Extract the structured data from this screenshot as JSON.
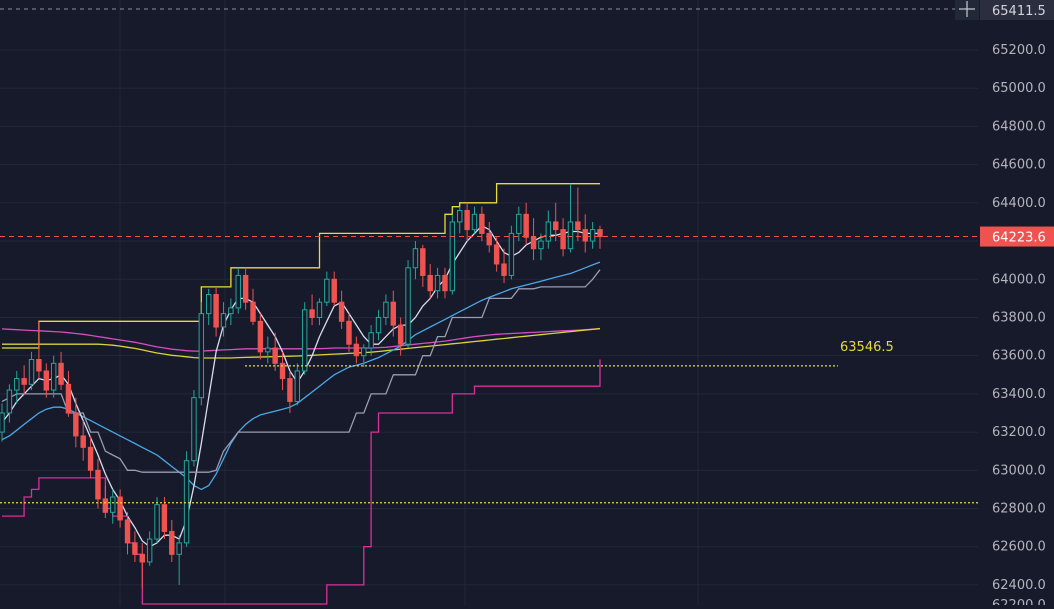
{
  "chart_data": {
    "type": "candlestick",
    "ylim": [
      62300,
      65420
    ],
    "y_ticks": [
      62400,
      62600,
      62800,
      63000,
      63200,
      63400,
      63600,
      63800,
      64000,
      64200,
      64400,
      64600,
      64800,
      65000,
      65200
    ],
    "y_tick_labels": [
      "62400.0",
      "62600.0",
      "62800.0",
      "63000.0",
      "63200.0",
      "63400.0",
      "63600.0",
      "63800.0",
      "64000.0",
      "64200.0",
      "64400.0",
      "64600.0",
      "64800.0",
      "65000.0",
      "65200.0"
    ],
    "bottom_partial_label": "62200.0",
    "price_labels": {
      "top": {
        "value": 65411.5,
        "text": "65411.5"
      },
      "last": {
        "value": 64223.6,
        "text": "64223.6"
      },
      "level": {
        "value": 63546.5,
        "text": "63546.5"
      }
    },
    "level_lines": {
      "upper": 63546.5,
      "lower": 62830
    },
    "candle_count": 82,
    "candles": [
      [
        63200,
        63350,
        63150,
        63300
      ],
      [
        63300,
        63450,
        63250,
        63420
      ],
      [
        63420,
        63520,
        63350,
        63480
      ],
      [
        63480,
        63550,
        63400,
        63450
      ],
      [
        63450,
        63620,
        63420,
        63580
      ],
      [
        63580,
        63780,
        63480,
        63520
      ],
      [
        63520,
        63560,
        63380,
        63420
      ],
      [
        63420,
        63600,
        63380,
        63560
      ],
      [
        63560,
        63620,
        63420,
        63450
      ],
      [
        63450,
        63520,
        63280,
        63300
      ],
      [
        63300,
        63380,
        63120,
        63180
      ],
      [
        63180,
        63260,
        63050,
        63120
      ],
      [
        63120,
        63180,
        62960,
        63000
      ],
      [
        63000,
        63060,
        62800,
        62850
      ],
      [
        62850,
        62920,
        62750,
        62780
      ],
      [
        62780,
        62900,
        62720,
        62860
      ],
      [
        62860,
        62900,
        62700,
        62740
      ],
      [
        62740,
        62780,
        62560,
        62620
      ],
      [
        62620,
        62680,
        62520,
        62560
      ],
      [
        62560,
        62620,
        62380,
        62520
      ],
      [
        62520,
        62680,
        62500,
        62640
      ],
      [
        62640,
        62860,
        62620,
        62820
      ],
      [
        62820,
        62860,
        62640,
        62680
      ],
      [
        62680,
        62740,
        62520,
        62560
      ],
      [
        62560,
        62660,
        62400,
        62620
      ],
      [
        62620,
        63100,
        62600,
        63050
      ],
      [
        63050,
        63420,
        63020,
        63380
      ],
      [
        63380,
        63880,
        63340,
        63820
      ],
      [
        63820,
        63950,
        63760,
        63920
      ],
      [
        63920,
        63960,
        63700,
        63750
      ],
      [
        63750,
        63880,
        63700,
        63820
      ],
      [
        63820,
        63900,
        63760,
        63850
      ],
      [
        63850,
        64060,
        63820,
        64020
      ],
      [
        64020,
        64060,
        63840,
        63880
      ],
      [
        63880,
        63950,
        63760,
        63780
      ],
      [
        63780,
        63820,
        63580,
        63620
      ],
      [
        63620,
        63700,
        63560,
        63640
      ],
      [
        63640,
        63720,
        63520,
        63560
      ],
      [
        63560,
        63620,
        63420,
        63480
      ],
      [
        63480,
        63520,
        63300,
        63360
      ],
      [
        63360,
        63560,
        63340,
        63520
      ],
      [
        63520,
        63880,
        63500,
        63840
      ],
      [
        63840,
        63920,
        63760,
        63800
      ],
      [
        63800,
        63900,
        63760,
        63880
      ],
      [
        63880,
        64040,
        63860,
        64000
      ],
      [
        64000,
        64040,
        63860,
        63880
      ],
      [
        63880,
        63940,
        63740,
        63780
      ],
      [
        63780,
        63820,
        63620,
        63660
      ],
      [
        63660,
        63700,
        63560,
        63600
      ],
      [
        63600,
        63660,
        63540,
        63640
      ],
      [
        63640,
        63760,
        63600,
        63720
      ],
      [
        63720,
        63840,
        63680,
        63800
      ],
      [
        63800,
        63920,
        63760,
        63880
      ],
      [
        63880,
        63940,
        63700,
        63760
      ],
      [
        63760,
        63800,
        63600,
        63660
      ],
      [
        63660,
        64100,
        63640,
        64060
      ],
      [
        64060,
        64200,
        64000,
        64160
      ],
      [
        64160,
        64180,
        63960,
        64020
      ],
      [
        64020,
        64080,
        63900,
        63940
      ],
      [
        63940,
        64060,
        63900,
        64020
      ],
      [
        64020,
        64060,
        63900,
        63940
      ],
      [
        63940,
        64340,
        63920,
        64300
      ],
      [
        64300,
        64380,
        64240,
        64360
      ],
      [
        64360,
        64400,
        64200,
        64260
      ],
      [
        64260,
        64380,
        64240,
        64340
      ],
      [
        64340,
        64380,
        64200,
        64240
      ],
      [
        64240,
        64300,
        64140,
        64180
      ],
      [
        64180,
        64220,
        64040,
        64080
      ],
      [
        64080,
        64160,
        63980,
        64020
      ],
      [
        64020,
        64280,
        64000,
        64240
      ],
      [
        64240,
        64380,
        64200,
        64340
      ],
      [
        64340,
        64400,
        64180,
        64220
      ],
      [
        64220,
        64320,
        64100,
        64160
      ],
      [
        64160,
        64240,
        64100,
        64200
      ],
      [
        64200,
        64360,
        64160,
        64300
      ],
      [
        64300,
        64400,
        64200,
        64260
      ],
      [
        64260,
        64320,
        64120,
        64160
      ],
      [
        64160,
        64500,
        64140,
        64300
      ],
      [
        64300,
        64480,
        64200,
        64260
      ],
      [
        64260,
        64340,
        64140,
        64200
      ],
      [
        64200,
        64300,
        64160,
        64260
      ],
      [
        64260,
        64280,
        64160,
        64223.6
      ]
    ],
    "series": [
      {
        "key": "upper_band",
        "color": "#e6dc3c",
        "step": true,
        "values": [
          63640,
          63640,
          63640,
          63640,
          63640,
          63780,
          63780,
          63780,
          63780,
          63780,
          63780,
          63780,
          63780,
          63780,
          63780,
          63780,
          63780,
          63780,
          63780,
          63780,
          63780,
          63780,
          63780,
          63780,
          63780,
          63780,
          63780,
          63960,
          63960,
          63960,
          63960,
          64060,
          64060,
          64060,
          64060,
          64060,
          64060,
          64060,
          64060,
          64060,
          64060,
          64060,
          64060,
          64240,
          64240,
          64240,
          64240,
          64240,
          64240,
          64240,
          64240,
          64240,
          64240,
          64240,
          64240,
          64240,
          64240,
          64240,
          64240,
          64240,
          64340,
          64380,
          64400,
          64400,
          64400,
          64400,
          64400,
          64500,
          64500,
          64500,
          64500,
          64500,
          64500,
          64500,
          64500,
          64500,
          64500,
          64500,
          64500,
          64500,
          64500,
          64500
        ]
      },
      {
        "key": "lower_band",
        "color": "#d9309a",
        "step": true,
        "values": [
          62760,
          62760,
          62760,
          62860,
          62900,
          62960,
          62960,
          62960,
          62960,
          62960,
          62960,
          62960,
          62960,
          62960,
          62800,
          62760,
          62760,
          62620,
          62560,
          62300,
          62300,
          62300,
          62300,
          62300,
          62300,
          62300,
          62300,
          62300,
          62300,
          62300,
          62300,
          62300,
          62300,
          62300,
          62300,
          62300,
          62300,
          62300,
          62300,
          62300,
          62300,
          62300,
          62300,
          62300,
          62400,
          62400,
          62400,
          62400,
          62400,
          62600,
          63200,
          63300,
          63300,
          63300,
          63300,
          63300,
          63300,
          63300,
          63300,
          63300,
          63300,
          63400,
          63400,
          63400,
          63440,
          63440,
          63440,
          63440,
          63440,
          63440,
          63440,
          63440,
          63440,
          63440,
          63440,
          63440,
          63440,
          63440,
          63440,
          63440,
          63440,
          63580
        ]
      },
      {
        "key": "slow_ma_magenta",
        "color": "#d94cc4",
        "values": [
          63740,
          63738,
          63736,
          63734,
          63732,
          63730,
          63728,
          63726,
          63724,
          63720,
          63716,
          63712,
          63706,
          63700,
          63694,
          63688,
          63682,
          63676,
          63670,
          63662,
          63654,
          63646,
          63640,
          63634,
          63630,
          63626,
          63624,
          63624,
          63626,
          63628,
          63630,
          63632,
          63634,
          63636,
          63636,
          63636,
          63636,
          63636,
          63636,
          63636,
          63636,
          63636,
          63636,
          63637,
          63638,
          63640,
          63640,
          63640,
          63640,
          63640,
          63640,
          63642,
          63644,
          63648,
          63652,
          63656,
          63660,
          63664,
          63668,
          63672,
          63676,
          63682,
          63688,
          63694,
          63700,
          63704,
          63708,
          63712,
          63714,
          63716,
          63718,
          63720,
          63722,
          63724,
          63726,
          63728,
          63730,
          63732,
          63734,
          63736,
          63738,
          63740
        ]
      },
      {
        "key": "slow_ma_yellow",
        "color": "#dcd23c",
        "values": [
          63660,
          63660,
          63660,
          63660,
          63660,
          63660,
          63660,
          63660,
          63660,
          63660,
          63660,
          63660,
          63660,
          63660,
          63658,
          63655,
          63650,
          63644,
          63638,
          63630,
          63622,
          63614,
          63608,
          63602,
          63598,
          63594,
          63590,
          63588,
          63588,
          63588,
          63588,
          63588,
          63590,
          63591,
          63592,
          63593,
          63594,
          63595,
          63596,
          63597,
          63598,
          63600,
          63602,
          63604,
          63606,
          63608,
          63610,
          63612,
          63614,
          63616,
          63618,
          63622,
          63626,
          63630,
          63634,
          63638,
          63642,
          63646,
          63650,
          63654,
          63658,
          63662,
          63666,
          63670,
          63674,
          63678,
          63682,
          63686,
          63690,
          63694,
          63698,
          63702,
          63706,
          63710,
          63714,
          63718,
          63722,
          63726,
          63730,
          63734,
          63738,
          63742
        ]
      },
      {
        "key": "mid_ma_blue",
        "color": "#4aa8e6",
        "values": [
          63160,
          63180,
          63210,
          63240,
          63270,
          63300,
          63320,
          63330,
          63330,
          63320,
          63300,
          63280,
          63260,
          63240,
          63220,
          63200,
          63180,
          63160,
          63140,
          63120,
          63100,
          63080,
          63050,
          63020,
          62990,
          62960,
          62920,
          62900,
          62920,
          62980,
          63060,
          63140,
          63200,
          63240,
          63270,
          63290,
          63300,
          63310,
          63320,
          63330,
          63350,
          63380,
          63410,
          63440,
          63470,
          63500,
          63520,
          63540,
          63550,
          63560,
          63575,
          63590,
          63610,
          63630,
          63650,
          63680,
          63710,
          63730,
          63750,
          63770,
          63790,
          63810,
          63830,
          63850,
          63870,
          63890,
          63905,
          63920,
          63935,
          63950,
          63960,
          63970,
          63980,
          63990,
          64000,
          64010,
          64020,
          64030,
          64045,
          64060,
          64075,
          64090
        ]
      },
      {
        "key": "fast_ma_white",
        "color": "#dcdcf0",
        "values": [
          63250,
          63300,
          63360,
          63400,
          63440,
          63480,
          63470,
          63480,
          63500,
          63450,
          63350,
          63260,
          63170,
          63080,
          62980,
          62900,
          62840,
          62760,
          62700,
          62630,
          62600,
          62620,
          62660,
          62660,
          62640,
          62740,
          62920,
          63140,
          63380,
          63620,
          63760,
          63840,
          63900,
          63900,
          63880,
          63820,
          63760,
          63700,
          63620,
          63520,
          63460,
          63520,
          63600,
          63700,
          63780,
          63860,
          63880,
          63820,
          63760,
          63700,
          63660,
          63660,
          63700,
          63740,
          63760,
          63760,
          63800,
          63860,
          63900,
          63960,
          64000,
          64080,
          64140,
          64200,
          64240,
          64280,
          64260,
          64200,
          64140,
          64120,
          64140,
          64180,
          64200,
          64220,
          64230,
          64230,
          64240,
          64250,
          64250,
          64240,
          64240,
          64240
        ]
      },
      {
        "key": "grey_line",
        "color": "#9a9cb2",
        "values": [
          63360,
          63380,
          63400,
          63400,
          63400,
          63400,
          63400,
          63400,
          63400,
          63300,
          63300,
          63300,
          63200,
          63200,
          63100,
          63080,
          63060,
          63000,
          63000,
          62990,
          62990,
          62990,
          62990,
          62990,
          62990,
          62990,
          62990,
          62990,
          62990,
          63000,
          63100,
          63150,
          63200,
          63200,
          63200,
          63200,
          63200,
          63200,
          63200,
          63200,
          63200,
          63200,
          63200,
          63200,
          63200,
          63200,
          63200,
          63200,
          63300,
          63300,
          63400,
          63400,
          63400,
          63500,
          63500,
          63500,
          63500,
          63600,
          63600,
          63700,
          63700,
          63800,
          63800,
          63800,
          63800,
          63800,
          63900,
          63900,
          63900,
          63900,
          63950,
          63950,
          63950,
          63960,
          63960,
          63960,
          63960,
          63960,
          63960,
          63960,
          64000,
          64050
        ]
      }
    ]
  }
}
